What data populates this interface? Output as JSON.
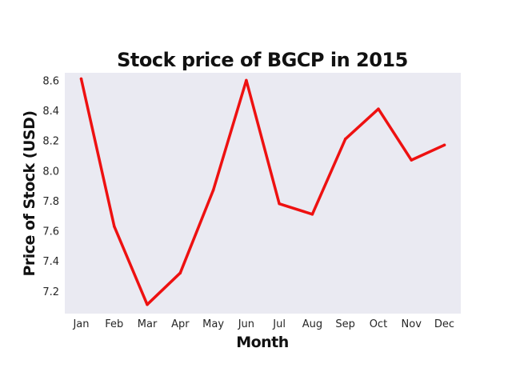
{
  "chart_data": {
    "type": "line",
    "title": "Stock price of BGCP in 2015",
    "xlabel": "Month",
    "ylabel": "Price of Stock (USD)",
    "categories": [
      "Jan",
      "Feb",
      "Mar",
      "Apr",
      "May",
      "Jun",
      "Jul",
      "Aug",
      "Sep",
      "Oct",
      "Nov",
      "Dec"
    ],
    "values": [
      8.61,
      7.63,
      7.11,
      7.32,
      7.87,
      8.6,
      7.78,
      7.71,
      8.21,
      8.41,
      8.07,
      8.17
    ],
    "yticks": [
      "7.2",
      "7.4",
      "7.6",
      "7.8",
      "8.0",
      "8.2",
      "8.4",
      "8.6"
    ],
    "ylim": [
      7.05,
      8.65
    ],
    "grid": false,
    "line_color": "#ee1111",
    "plot_background": "#eaeaf2"
  }
}
